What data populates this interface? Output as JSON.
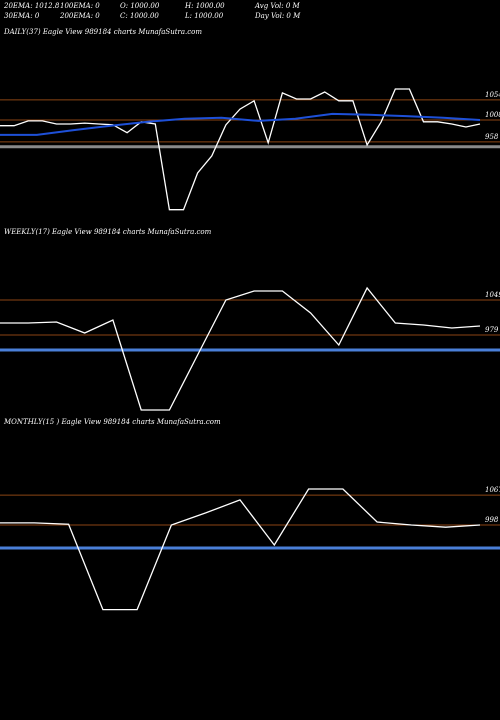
{
  "header": {
    "items": [
      [
        "20EMA: 1012.8",
        "100EMA: 0",
        "O: 1000.00",
        "H: 1000.00",
        "Avg Vol: 0  M"
      ],
      [
        "30EMA: 0",
        "200EMA: 0",
        "C: 1000.00",
        "L: 1000.00",
        "Day Vol: 0  M"
      ]
    ]
  },
  "chart_data": [
    {
      "type": "line",
      "title": "DAILY(37) Eagle  View  989184  charts MunafaSutra.com",
      "ylim": [
        768,
        1191
      ],
      "yticks": [
        958,
        1008,
        1054
      ],
      "tick_color": "#8b4513",
      "bands": [
        {
          "value": 947,
          "color": "#8a8a8a"
        }
      ],
      "series": [
        {
          "color": "#ffffff",
          "values": [
            995,
            995,
            1006,
            1006,
            999,
            999,
            1001,
            999,
            997,
            979,
            1004,
            999,
            803,
            803,
            887,
            926,
            997,
            1033,
            1052,
            956,
            1070,
            1056,
            1056,
            1072,
            1052,
            1052,
            951,
            1004,
            1079,
            1079,
            1004,
            1004,
            999,
            992,
            999
          ]
        },
        {
          "color": "#1e50d8",
          "values": [
            974,
            974,
            985,
            995,
            1004,
            1011,
            1013,
            1006,
            1011,
            1022,
            1020,
            1017,
            1013,
            1008
          ]
        }
      ]
    },
    {
      "type": "line",
      "title": "WEEKLY(17) Eagle  View  989184  charts MunafaSutra.com",
      "ylim": [
        809,
        1169
      ],
      "yticks": [
        979,
        1049
      ],
      "tick_color": "#8b4513",
      "bands": [
        {
          "value": 949,
          "color": "#4a7fd8"
        }
      ],
      "series": [
        {
          "color": "#ffffff",
          "values": [
            1003,
            1003,
            1005,
            983,
            1009,
            829,
            829,
            939,
            1049,
            1067,
            1067,
            1023,
            959,
            1073,
            1003,
            999,
            993,
            997
          ]
        }
      ]
    },
    {
      "type": "line",
      "title": "MONTHLY(15           ) Eagle  View  989184  charts MunafaSutra.com",
      "ylim": [
        733,
        1217
      ],
      "yticks": [
        998,
        1067
      ],
      "tick_color": "#8b4513",
      "bands": [
        {
          "value": 945,
          "color": "#4a7fd8"
        }
      ],
      "series": [
        {
          "color": "#ffffff",
          "values": [
            1003,
            1003,
            1000,
            803,
            803,
            998,
            1026,
            1056,
            952,
            1081,
            1081,
            1005,
            998,
            993,
            998
          ]
        }
      ]
    }
  ]
}
